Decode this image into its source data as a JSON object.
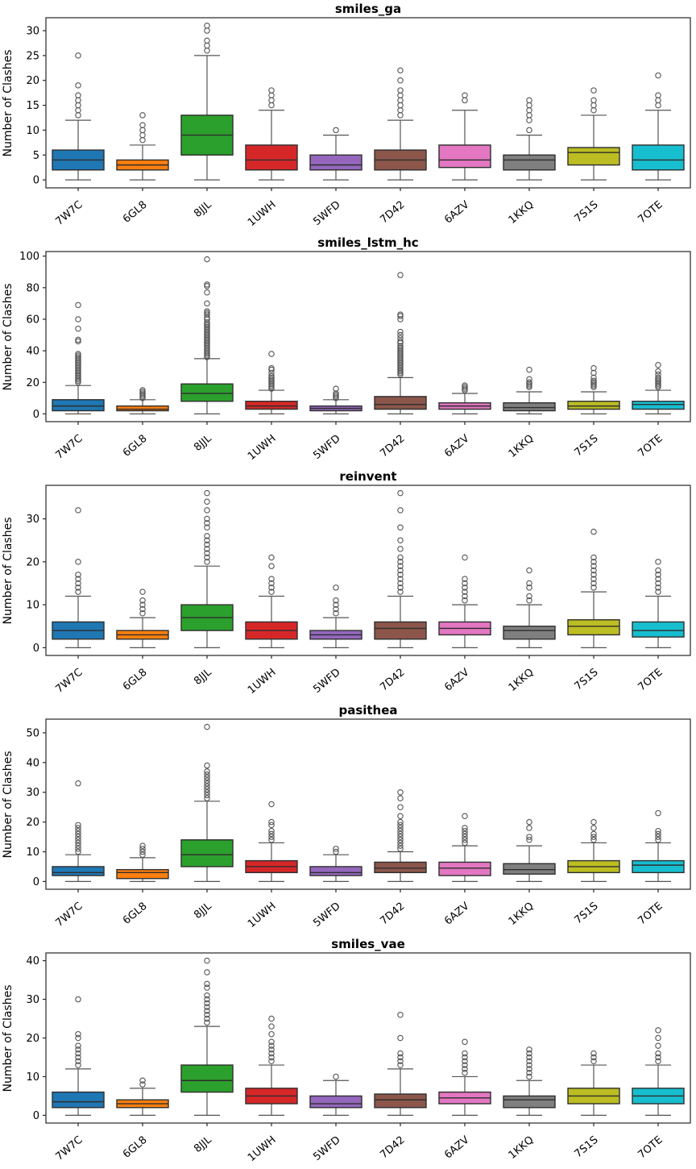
{
  "figure": {
    "background": "#ffffff",
    "ylabel": "Number of Clashes"
  },
  "categories": [
    "7W7C",
    "6GL8",
    "8JJL",
    "1UWH",
    "5WFD",
    "7D42",
    "6AZV",
    "1KKQ",
    "7S1S",
    "7OTE"
  ],
  "style": {
    "palette": [
      "#1f77b4",
      "#ff7f0e",
      "#2ca02c",
      "#d62728",
      "#9467bd",
      "#8c564b",
      "#e377c2",
      "#7f7f7f",
      "#bcbd22",
      "#17becf"
    ],
    "spine_color": "#262626",
    "box_edge_color": "#2e2e2e",
    "whisker_color": "#555555",
    "flier_color": "#555555"
  },
  "chart_data": [
    {
      "type": "boxplot",
      "title": "smiles_ga",
      "ylabel": "Number of Clashes",
      "yticks": [
        0,
        5,
        10,
        15,
        20,
        25,
        30
      ],
      "ylim": [
        -1.6,
        32.6
      ],
      "grid": false,
      "boxes": [
        {
          "label": "7W7C",
          "whislo": 0,
          "q1": 2,
          "med": 4,
          "q3": 6,
          "whishi": 12,
          "outliers": [
            13,
            14,
            15,
            16,
            17,
            19,
            25
          ]
        },
        {
          "label": "6GL8",
          "whislo": 0,
          "q1": 2,
          "med": 3,
          "q3": 4,
          "whishi": 7,
          "outliers": [
            8,
            9,
            10,
            11,
            13
          ]
        },
        {
          "label": "8JJL",
          "whislo": 0,
          "q1": 5,
          "med": 9,
          "q3": 13,
          "whishi": 25,
          "outliers": [
            26,
            27,
            28,
            30,
            31
          ]
        },
        {
          "label": "1UWH",
          "whislo": 0,
          "q1": 2,
          "med": 4,
          "q3": 7,
          "whishi": 14,
          "outliers": [
            15,
            16,
            17,
            18
          ]
        },
        {
          "label": "5WFD",
          "whislo": 0,
          "q1": 2,
          "med": 3,
          "q3": 5,
          "whishi": 9,
          "outliers": [
            10
          ]
        },
        {
          "label": "7D42",
          "whislo": 0,
          "q1": 2,
          "med": 4,
          "q3": 6,
          "whishi": 12,
          "outliers": [
            13,
            14,
            15,
            16,
            17,
            18,
            20,
            22
          ]
        },
        {
          "label": "6AZV",
          "whislo": 0,
          "q1": 2.5,
          "med": 4,
          "q3": 7,
          "whishi": 14,
          "outliers": [
            16,
            17
          ]
        },
        {
          "label": "1KKQ",
          "whislo": 0,
          "q1": 2,
          "med": 4,
          "q3": 5,
          "whishi": 9,
          "outliers": [
            10,
            12,
            13,
            14,
            15,
            16
          ]
        },
        {
          "label": "7S1S",
          "whislo": 0,
          "q1": 3,
          "med": 5.5,
          "q3": 6.5,
          "whishi": 13,
          "outliers": [
            14,
            15,
            16,
            18
          ]
        },
        {
          "label": "7OTE",
          "whislo": 0,
          "q1": 2,
          "med": 4,
          "q3": 7,
          "whishi": 14,
          "outliers": [
            15,
            16,
            17,
            21
          ]
        }
      ]
    },
    {
      "type": "boxplot",
      "title": "smiles_lstm_hc",
      "ylabel": "Number of Clashes",
      "yticks": [
        0,
        20,
        40,
        60,
        80,
        100
      ],
      "ylim": [
        -4.9,
        102.9
      ],
      "grid": false,
      "boxes": [
        {
          "label": "7W7C",
          "whislo": 0,
          "q1": 2,
          "med": 5,
          "q3": 9,
          "whishi": 18,
          "outliers": [
            20,
            21,
            22,
            23,
            24,
            25,
            26,
            27,
            28,
            29,
            30,
            31,
            32,
            33,
            34,
            35,
            36,
            37,
            38,
            46,
            47,
            54,
            60,
            69
          ]
        },
        {
          "label": "6GL8",
          "whislo": 0,
          "q1": 2,
          "med": 3,
          "q3": 5,
          "whishi": 9,
          "outliers": [
            10,
            11,
            12,
            13,
            14,
            15
          ]
        },
        {
          "label": "8JJL",
          "whislo": 0,
          "q1": 8,
          "med": 13,
          "q3": 19,
          "whishi": 35,
          "outliers": [
            36,
            37,
            38,
            39,
            40,
            41,
            42,
            43,
            44,
            45,
            46,
            47,
            48,
            49,
            50,
            51,
            52,
            53,
            54,
            55,
            56,
            57,
            58,
            60,
            61,
            63,
            64,
            65,
            70,
            77,
            81,
            82,
            98
          ]
        },
        {
          "label": "1UWH",
          "whislo": 0,
          "q1": 3,
          "med": 5,
          "q3": 8,
          "whishi": 15,
          "outliers": [
            16,
            17,
            18,
            19,
            20,
            21,
            22,
            23,
            24,
            26,
            28,
            29,
            38
          ]
        },
        {
          "label": "5WFD",
          "whislo": 0,
          "q1": 2,
          "med": 3.5,
          "q3": 5,
          "whishi": 9,
          "outliers": [
            10,
            11,
            12,
            13,
            16
          ]
        },
        {
          "label": "7D42",
          "whislo": 0,
          "q1": 3,
          "med": 6,
          "q3": 11,
          "whishi": 23,
          "outliers": [
            25,
            26,
            27,
            28,
            29,
            30,
            31,
            32,
            33,
            34,
            35,
            36,
            37,
            38,
            39,
            40,
            41,
            42,
            43,
            45,
            46,
            48,
            50,
            52,
            60,
            62,
            63,
            88
          ]
        },
        {
          "label": "6AZV",
          "whislo": 0,
          "q1": 3,
          "med": 5,
          "q3": 7,
          "whishi": 13,
          "outliers": [
            15,
            16,
            17,
            18
          ]
        },
        {
          "label": "1KKQ",
          "whislo": 0,
          "q1": 2,
          "med": 4,
          "q3": 7,
          "whishi": 14,
          "outliers": [
            17,
            18,
            19,
            20,
            22,
            28
          ]
        },
        {
          "label": "7S1S",
          "whislo": 0,
          "q1": 3,
          "med": 5,
          "q3": 8,
          "whishi": 14,
          "outliers": [
            17,
            18,
            19,
            20,
            21,
            23,
            26,
            29
          ]
        },
        {
          "label": "7OTE",
          "whislo": 0,
          "q1": 3,
          "med": 6,
          "q3": 8,
          "whishi": 15,
          "outliers": [
            17,
            18,
            19,
            20,
            21,
            22,
            23,
            25,
            27,
            31
          ]
        }
      ]
    },
    {
      "type": "boxplot",
      "title": "reinvent",
      "ylabel": "Number of Clashes",
      "yticks": [
        0,
        10,
        20,
        30
      ],
      "ylim": [
        -1.8,
        37.8
      ],
      "grid": false,
      "boxes": [
        {
          "label": "7W7C",
          "whislo": 0,
          "q1": 2,
          "med": 4,
          "q3": 6,
          "whishi": 12,
          "outliers": [
            13,
            14,
            15,
            16,
            17,
            20,
            32
          ]
        },
        {
          "label": "6GL8",
          "whislo": 0,
          "q1": 2,
          "med": 3,
          "q3": 4,
          "whishi": 7,
          "outliers": [
            8,
            9,
            10,
            11,
            13
          ]
        },
        {
          "label": "8JJL",
          "whislo": 0,
          "q1": 4,
          "med": 7,
          "q3": 10,
          "whishi": 19,
          "outliers": [
            20,
            21,
            22,
            23,
            24,
            25,
            26,
            28,
            29,
            30,
            32,
            34,
            36
          ]
        },
        {
          "label": "1UWH",
          "whislo": 0,
          "q1": 2,
          "med": 4,
          "q3": 6,
          "whishi": 12,
          "outliers": [
            13,
            14,
            15,
            16,
            19,
            21
          ]
        },
        {
          "label": "5WFD",
          "whislo": 0,
          "q1": 2,
          "med": 3,
          "q3": 4,
          "whishi": 7,
          "outliers": [
            8,
            9,
            10,
            11,
            14
          ]
        },
        {
          "label": "7D42",
          "whislo": 0,
          "q1": 2,
          "med": 4.5,
          "q3": 6,
          "whishi": 12,
          "outliers": [
            13,
            14,
            15,
            16,
            17,
            18,
            19,
            20,
            21,
            23,
            25,
            28,
            32,
            36
          ]
        },
        {
          "label": "6AZV",
          "whislo": 0,
          "q1": 3,
          "med": 4.5,
          "q3": 6,
          "whishi": 10,
          "outliers": [
            11,
            12,
            13,
            14,
            15,
            16,
            21
          ]
        },
        {
          "label": "1KKQ",
          "whislo": 0,
          "q1": 2,
          "med": 4,
          "q3": 5,
          "whishi": 10,
          "outliers": [
            11,
            12,
            14,
            15,
            18
          ]
        },
        {
          "label": "7S1S",
          "whislo": 0,
          "q1": 3,
          "med": 5,
          "q3": 6.5,
          "whishi": 13,
          "outliers": [
            14,
            15,
            16,
            17,
            18,
            19,
            20,
            21,
            27
          ]
        },
        {
          "label": "7OTE",
          "whislo": 0,
          "q1": 2.5,
          "med": 4,
          "q3": 6,
          "whishi": 12,
          "outliers": [
            13,
            14,
            15,
            16,
            17,
            18,
            20
          ]
        }
      ]
    },
    {
      "type": "boxplot",
      "title": "pasithea",
      "ylabel": "Number of Clashes",
      "yticks": [
        0,
        10,
        20,
        30,
        40,
        50
      ],
      "ylim": [
        -2.6,
        54.6
      ],
      "grid": false,
      "boxes": [
        {
          "label": "7W7C",
          "whislo": 0,
          "q1": 2,
          "med": 3,
          "q3": 5,
          "whishi": 9,
          "outliers": [
            10,
            11,
            12,
            13,
            14,
            15,
            16,
            17,
            18,
            19,
            33
          ]
        },
        {
          "label": "6GL8",
          "whislo": 0,
          "q1": 1,
          "med": 3,
          "q3": 4,
          "whishi": 8,
          "outliers": [
            9,
            10,
            11,
            12
          ]
        },
        {
          "label": "8JJL",
          "whislo": 0,
          "q1": 5,
          "med": 9,
          "q3": 14,
          "whishi": 27,
          "outliers": [
            28,
            29,
            30,
            31,
            32,
            33,
            34,
            35,
            36,
            37,
            39,
            52
          ]
        },
        {
          "label": "1UWH",
          "whislo": 0,
          "q1": 3,
          "med": 5,
          "q3": 7,
          "whishi": 13,
          "outliers": [
            14,
            15,
            16,
            17,
            19,
            20,
            26
          ]
        },
        {
          "label": "5WFD",
          "whislo": 0,
          "q1": 2,
          "med": 3,
          "q3": 5,
          "whishi": 9,
          "outliers": [
            10,
            11
          ]
        },
        {
          "label": "7D42",
          "whislo": 0,
          "q1": 3,
          "med": 4.5,
          "q3": 6.5,
          "whishi": 10,
          "outliers": [
            11,
            12,
            13,
            14,
            15,
            16,
            17,
            18,
            19,
            20,
            22,
            25,
            28,
            30
          ]
        },
        {
          "label": "6AZV",
          "whislo": 0,
          "q1": 2,
          "med": 4.5,
          "q3": 6.5,
          "whishi": 12,
          "outliers": [
            13,
            14,
            15,
            16,
            17,
            18,
            22
          ]
        },
        {
          "label": "1KKQ",
          "whislo": 0,
          "q1": 2.5,
          "med": 4,
          "q3": 6,
          "whishi": 12,
          "outliers": [
            14,
            15,
            18,
            20
          ]
        },
        {
          "label": "7S1S",
          "whislo": 0,
          "q1": 3,
          "med": 5,
          "q3": 7,
          "whishi": 13,
          "outliers": [
            14,
            15,
            16,
            18,
            20
          ]
        },
        {
          "label": "7OTE",
          "whislo": 0,
          "q1": 3,
          "med": 5.5,
          "q3": 7,
          "whishi": 13,
          "outliers": [
            14,
            15,
            16,
            17,
            23
          ]
        }
      ]
    },
    {
      "type": "boxplot",
      "title": "smiles_vae",
      "ylabel": "Number of Clashes",
      "yticks": [
        0,
        10,
        20,
        30,
        40
      ],
      "ylim": [
        -2,
        42
      ],
      "grid": false,
      "boxes": [
        {
          "label": "7W7C",
          "whislo": 0,
          "q1": 2,
          "med": 3.5,
          "q3": 6,
          "whishi": 12,
          "outliers": [
            13,
            14,
            15,
            16,
            17,
            18,
            20,
            21,
            30
          ]
        },
        {
          "label": "6GL8",
          "whislo": 0,
          "q1": 2,
          "med": 3,
          "q3": 4,
          "whishi": 7,
          "outliers": [
            8,
            9
          ]
        },
        {
          "label": "8JJL",
          "whislo": 0,
          "q1": 6,
          "med": 9,
          "q3": 13,
          "whishi": 23,
          "outliers": [
            24,
            25,
            26,
            27,
            28,
            29,
            30,
            31,
            33,
            34,
            37,
            40
          ]
        },
        {
          "label": "1UWH",
          "whislo": 0,
          "q1": 3,
          "med": 5,
          "q3": 7,
          "whishi": 13,
          "outliers": [
            14,
            15,
            16,
            17,
            18,
            19,
            21,
            23,
            25
          ]
        },
        {
          "label": "5WFD",
          "whislo": 0,
          "q1": 2,
          "med": 3,
          "q3": 5,
          "whishi": 9,
          "outliers": [
            10
          ]
        },
        {
          "label": "7D42",
          "whislo": 0,
          "q1": 2,
          "med": 4,
          "q3": 5.5,
          "whishi": 12,
          "outliers": [
            13,
            14,
            15,
            16,
            20,
            26
          ]
        },
        {
          "label": "6AZV",
          "whislo": 0,
          "q1": 3,
          "med": 4.5,
          "q3": 6,
          "whishi": 10,
          "outliers": [
            11,
            12,
            13,
            14,
            15,
            16,
            19
          ]
        },
        {
          "label": "1KKQ",
          "whislo": 0,
          "q1": 2,
          "med": 4,
          "q3": 5,
          "whishi": 9,
          "outliers": [
            10,
            11,
            12,
            13,
            14,
            15,
            16,
            17
          ]
        },
        {
          "label": "7S1S",
          "whislo": 0,
          "q1": 3,
          "med": 5,
          "q3": 7,
          "whishi": 13,
          "outliers": [
            14,
            15,
            16
          ]
        },
        {
          "label": "7OTE",
          "whislo": 0,
          "q1": 3,
          "med": 5,
          "q3": 7,
          "whishi": 13,
          "outliers": [
            14,
            15,
            16,
            18,
            20,
            22
          ]
        }
      ]
    }
  ]
}
